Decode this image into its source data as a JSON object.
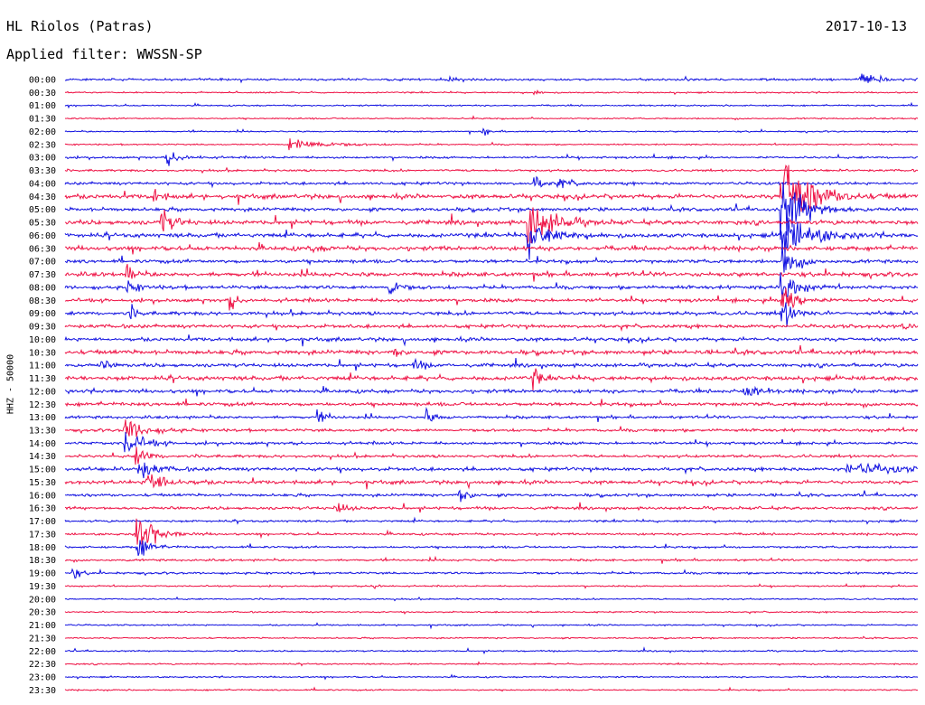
{
  "header": {
    "station": "HL Riolos (Patras)",
    "date": "2017-10-13",
    "filter": "Applied filter: WWSSN-SP"
  },
  "channel_label": "HHZ - 50000",
  "colors": {
    "blue": "#1010e0",
    "red": "#ee1144"
  },
  "chart_data": {
    "type": "line",
    "title": "HL Riolos (Patras)",
    "subtitle": "Applied filter: WWSSN-SP",
    "ylabel": "HHZ - 50000",
    "xlabel": "",
    "row_labels": [
      "00:00",
      "00:30",
      "01:00",
      "01:30",
      "02:00",
      "02:30",
      "03:00",
      "03:30",
      "04:00",
      "04:30",
      "05:00",
      "05:30",
      "06:00",
      "06:30",
      "07:00",
      "07:30",
      "08:00",
      "08:30",
      "09:00",
      "09:30",
      "10:00",
      "10:30",
      "11:00",
      "11:30",
      "12:00",
      "12:30",
      "13:00",
      "13:30",
      "14:00",
      "14:30",
      "15:00",
      "15:30",
      "16:00",
      "16:30",
      "17:00",
      "17:30",
      "18:00",
      "18:30",
      "19:00",
      "19:30",
      "20:00",
      "20:30",
      "21:00",
      "21:30",
      "22:00",
      "22:30",
      "23:00",
      "23:30"
    ],
    "row_minutes": 30,
    "line_colors": [
      "blue",
      "red"
    ],
    "noise_level": [
      1.5,
      1,
      1,
      1,
      1,
      1,
      1.5,
      1.5,
      2,
      3,
      2.5,
      3,
      3,
      3,
      2.5,
      3,
      2.5,
      2.5,
      2.5,
      2.5,
      2.5,
      3,
      2.5,
      3,
      2.5,
      2.5,
      2,
      2,
      2,
      2,
      2.5,
      2.5,
      2,
      2,
      1.5,
      1.5,
      1.5,
      1.5,
      1.5,
      1,
      1,
      1,
      1,
      1,
      1,
      1,
      1,
      1
    ],
    "events": [
      {
        "row": 0,
        "minute": 28,
        "amplitude": 14,
        "duration": 1.2
      },
      {
        "row": 0,
        "minute": 30,
        "amplitude": 8,
        "duration": 1.2
      },
      {
        "row": 0,
        "minute": 13.5,
        "amplitude": 4,
        "duration": 0.4
      },
      {
        "row": 1,
        "minute": 16.5,
        "amplitude": 5,
        "duration": 0.4
      },
      {
        "row": 4,
        "minute": 14.7,
        "amplitude": 6,
        "duration": 0.5
      },
      {
        "row": 5,
        "minute": 7.9,
        "amplitude": 12,
        "duration": 2.2
      },
      {
        "row": 6,
        "minute": 3.6,
        "amplitude": 12,
        "duration": 1
      },
      {
        "row": 8,
        "minute": 16.5,
        "amplitude": 14,
        "duration": 0.6
      },
      {
        "row": 8,
        "minute": 17.4,
        "amplitude": 8,
        "duration": 0.8
      },
      {
        "row": 9,
        "minute": 3.1,
        "amplitude": 15,
        "duration": 0.5
      },
      {
        "row": 9,
        "minute": 25.2,
        "amplitude": 85,
        "duration": 1.8
      },
      {
        "row": 10,
        "minute": 25.2,
        "amplitude": 60,
        "duration": 1.5
      },
      {
        "row": 11,
        "minute": 3.4,
        "amplitude": 22,
        "duration": 0.8
      },
      {
        "row": 11,
        "minute": 16.3,
        "amplitude": 45,
        "duration": 1.5
      },
      {
        "row": 12,
        "minute": 16.3,
        "amplitude": 30,
        "duration": 1.5
      },
      {
        "row": 12,
        "minute": 25.2,
        "amplitude": 40,
        "duration": 1.8
      },
      {
        "row": 13,
        "minute": 8.6,
        "amplitude": 6,
        "duration": 0.7
      },
      {
        "row": 14,
        "minute": 25.2,
        "amplitude": 40,
        "duration": 0.8
      },
      {
        "row": 15,
        "minute": 2.2,
        "amplitude": 15,
        "duration": 0.5
      },
      {
        "row": 16,
        "minute": 2.2,
        "amplitude": 10,
        "duration": 0.8
      },
      {
        "row": 16,
        "minute": 11.4,
        "amplitude": 20,
        "duration": 0.6
      },
      {
        "row": 16,
        "minute": 25.2,
        "amplitude": 40,
        "duration": 0.8
      },
      {
        "row": 17,
        "minute": 5.8,
        "amplitude": 16,
        "duration": 0.5
      },
      {
        "row": 17,
        "minute": 25.2,
        "amplitude": 45,
        "duration": 0.8
      },
      {
        "row": 18,
        "minute": 2.3,
        "amplitude": 12,
        "duration": 0.4
      },
      {
        "row": 18,
        "minute": 25.2,
        "amplitude": 30,
        "duration": 0.8
      },
      {
        "row": 19,
        "minute": 29.5,
        "amplitude": 8,
        "duration": 0.4
      },
      {
        "row": 21,
        "minute": 11.6,
        "amplitude": 10,
        "duration": 0.4
      },
      {
        "row": 22,
        "minute": 1.3,
        "amplitude": 8,
        "duration": 0.5
      },
      {
        "row": 22,
        "minute": 12.3,
        "amplitude": 10,
        "duration": 0.6
      },
      {
        "row": 23,
        "minute": 16.5,
        "amplitude": 18,
        "duration": 0.4
      },
      {
        "row": 24,
        "minute": 23.9,
        "amplitude": 14,
        "duration": 0.8
      },
      {
        "row": 25,
        "minute": 30.4,
        "amplitude": 8,
        "duration": 0.5
      },
      {
        "row": 26,
        "minute": 8.9,
        "amplitude": 8,
        "duration": 0.8
      },
      {
        "row": 26,
        "minute": 12.7,
        "amplitude": 12,
        "duration": 0.6
      },
      {
        "row": 27,
        "minute": 2.1,
        "amplitude": 25,
        "duration": 1.2
      },
      {
        "row": 28,
        "minute": 2.1,
        "amplitude": 22,
        "duration": 1.2
      },
      {
        "row": 29,
        "minute": 2.5,
        "amplitude": 15,
        "duration": 0.8
      },
      {
        "row": 30,
        "minute": 2.6,
        "amplitude": 18,
        "duration": 1
      },
      {
        "row": 30,
        "minute": 27.5,
        "amplitude": 8,
        "duration": 4
      },
      {
        "row": 31,
        "minute": 2.9,
        "amplitude": 25,
        "duration": 1.2
      },
      {
        "row": 32,
        "minute": 13.9,
        "amplitude": 14,
        "duration": 0.6
      },
      {
        "row": 33,
        "minute": 9.5,
        "amplitude": 10,
        "duration": 0.8
      },
      {
        "row": 35,
        "minute": 2.5,
        "amplitude": 40,
        "duration": 1.2
      },
      {
        "row": 36,
        "minute": 2.5,
        "amplitude": 25,
        "duration": 0.8
      },
      {
        "row": 38,
        "minute": 0.3,
        "amplitude": 10,
        "duration": 0.5
      },
      {
        "row": 39,
        "minute": 10.8,
        "amplitude": 8,
        "duration": 0.4
      }
    ]
  }
}
